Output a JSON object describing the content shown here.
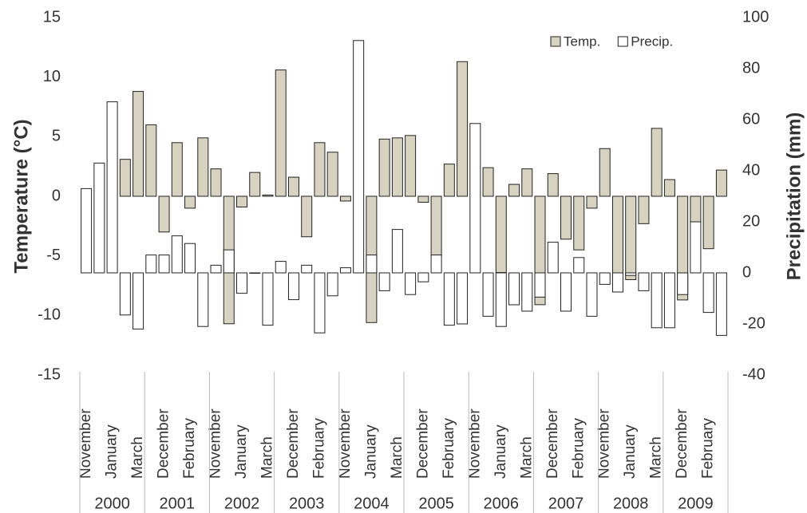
{
  "chart_data": {
    "type": "bar",
    "categories": [
      "November",
      null,
      "January",
      null,
      "March",
      null,
      "December",
      null,
      "February",
      null,
      "November",
      null,
      "January",
      null,
      "March",
      null,
      "December",
      null,
      "February",
      null,
      "November",
      null,
      "January",
      null,
      "March",
      null,
      "December",
      null,
      "February",
      null,
      "November",
      null,
      "January",
      null,
      "March",
      null,
      "December",
      null,
      "February",
      null,
      "November",
      null,
      "January",
      null,
      "March",
      null,
      "December",
      null,
      "February",
      null
    ],
    "years": [
      "2000",
      "2001",
      "2002",
      "2003",
      "2004",
      "2005",
      "2006",
      "2007",
      "2008",
      "2009"
    ],
    "ylabel": "Temperature (°C)",
    "y2label": "Precipitation (mm)",
    "ylim": [
      -15,
      15
    ],
    "yticks": [
      -15,
      -10,
      -5,
      0,
      5,
      10,
      15
    ],
    "y2lim": [
      -40,
      100
    ],
    "y2ticks": [
      -40,
      -20,
      0,
      20,
      40,
      60,
      80,
      100
    ],
    "grid": false,
    "legend": "upper right",
    "series": [
      {
        "name": "Temp.",
        "color": "#d8d3c0",
        "axis": "y",
        "values": [
          null,
          null,
          null,
          3.1,
          8.8,
          6.0,
          -3.0,
          4.5,
          -1.0,
          4.9,
          2.3,
          -10.7,
          -0.9,
          2.0,
          0.1,
          10.6,
          1.6,
          -3.4,
          4.5,
          3.7,
          -0.4,
          null,
          -10.6,
          4.8,
          4.9,
          5.1,
          -0.5,
          -5.0,
          2.7,
          11.3,
          null,
          2.4,
          -6.4,
          1.0,
          2.3,
          -9.1,
          1.9,
          -3.6,
          -4.5,
          -1.0,
          4.0,
          -6.5,
          -7.0,
          -2.3,
          5.7,
          1.4,
          -8.7,
          -2.2,
          -4.4,
          2.2
        ]
      },
      {
        "name": "Precip.",
        "color": "#ffffff",
        "axis": "y2",
        "values": [
          33,
          43,
          67,
          -16.5,
          -22,
          7,
          7,
          14.5,
          11.5,
          -21,
          3,
          9,
          -8,
          0,
          -20.5,
          4.5,
          -10.5,
          3,
          -23.5,
          -9,
          2,
          91,
          7,
          -7,
          17,
          -8.5,
          -3.5,
          7,
          -20.5,
          -20,
          58.5,
          -17,
          -21,
          -12.5,
          -15,
          -9.5,
          12,
          -15,
          6,
          -17,
          -4.5,
          -7.5,
          -1,
          -7,
          -21.5,
          -21.5,
          -8.5,
          20,
          -15.5,
          -24.5
        ]
      }
    ]
  }
}
